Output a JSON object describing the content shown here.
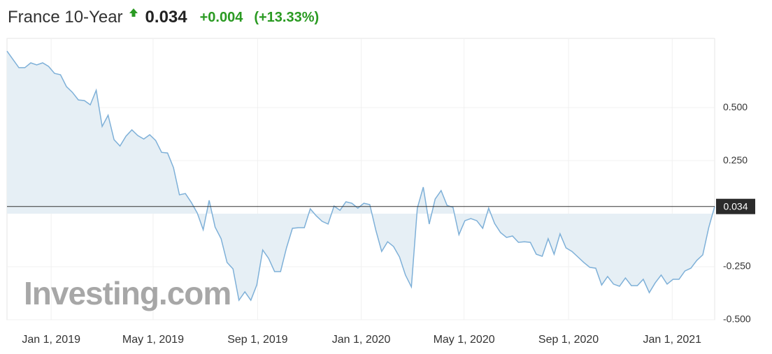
{
  "chart_data": {
    "type": "area",
    "title": "France 10-Year",
    "last_value": {
      "value": 0.034,
      "label": "0.034"
    },
    "change": "+0.004",
    "change_percent": "(+13.33%)",
    "watermark": "Investing.com",
    "color": "#7eb0d8",
    "fill_color": "#e6eff5",
    "x": [
      "2018-11-10",
      "2018-11-17",
      "2018-11-24",
      "2018-12-01",
      "2018-12-08",
      "2018-12-15",
      "2018-12-22",
      "2018-12-29",
      "2019-01-05",
      "2019-01-12",
      "2019-01-19",
      "2019-01-26",
      "2019-02-02",
      "2019-02-09",
      "2019-02-16",
      "2019-02-23",
      "2019-03-02",
      "2019-03-09",
      "2019-03-16",
      "2019-03-23",
      "2019-03-30",
      "2019-04-06",
      "2019-04-13",
      "2019-04-20",
      "2019-04-27",
      "2019-05-04",
      "2019-05-11",
      "2019-05-18",
      "2019-05-25",
      "2019-06-01",
      "2019-06-08",
      "2019-06-15",
      "2019-06-22",
      "2019-06-29",
      "2019-07-06",
      "2019-07-13",
      "2019-07-20",
      "2019-07-27",
      "2019-08-03",
      "2019-08-10",
      "2019-08-17",
      "2019-08-24",
      "2019-08-31",
      "2019-09-07",
      "2019-09-14",
      "2019-09-21",
      "2019-09-28",
      "2019-10-05",
      "2019-10-12",
      "2019-10-19",
      "2019-10-26",
      "2019-11-02",
      "2019-11-09",
      "2019-11-16",
      "2019-11-23",
      "2019-11-30",
      "2019-12-07",
      "2019-12-14",
      "2019-12-21",
      "2019-12-28",
      "2020-01-04",
      "2020-01-11",
      "2020-01-18",
      "2020-01-25",
      "2020-02-01",
      "2020-02-08",
      "2020-02-15",
      "2020-02-22",
      "2020-02-29",
      "2020-03-07",
      "2020-03-14",
      "2020-03-21",
      "2020-03-28",
      "2020-04-04",
      "2020-04-11",
      "2020-04-18",
      "2020-04-25",
      "2020-05-02",
      "2020-05-09",
      "2020-05-16",
      "2020-05-23",
      "2020-05-30",
      "2020-06-06",
      "2020-06-13",
      "2020-06-20",
      "2020-06-27",
      "2020-07-04",
      "2020-07-11",
      "2020-07-18",
      "2020-07-25",
      "2020-08-01",
      "2020-08-08",
      "2020-08-15",
      "2020-08-22",
      "2020-08-29",
      "2020-09-05",
      "2020-09-12",
      "2020-09-19",
      "2020-09-26",
      "2020-10-03",
      "2020-10-10",
      "2020-10-17",
      "2020-10-24",
      "2020-10-31",
      "2020-11-07",
      "2020-11-14",
      "2020-11-21",
      "2020-11-28",
      "2020-12-05",
      "2020-12-12",
      "2020-12-19",
      "2020-12-26",
      "2021-01-02",
      "2021-01-09",
      "2021-01-16",
      "2021-01-23",
      "2021-01-30",
      "2021-02-06",
      "2021-02-13",
      "2021-02-20"
    ],
    "values": [
      0.766,
      0.727,
      0.688,
      0.688,
      0.711,
      0.701,
      0.711,
      0.694,
      0.661,
      0.655,
      0.599,
      0.572,
      0.536,
      0.533,
      0.513,
      0.582,
      0.411,
      0.464,
      0.349,
      0.319,
      0.365,
      0.395,
      0.368,
      0.352,
      0.372,
      0.345,
      0.289,
      0.286,
      0.217,
      0.089,
      0.095,
      0.053,
      0.003,
      -0.076,
      0.063,
      -0.063,
      -0.118,
      -0.23,
      -0.26,
      -0.408,
      -0.368,
      -0.408,
      -0.336,
      -0.171,
      -0.211,
      -0.273,
      -0.273,
      -0.161,
      -0.069,
      -0.066,
      -0.066,
      0.023,
      -0.01,
      -0.036,
      -0.049,
      0.036,
      0.016,
      0.056,
      0.049,
      0.026,
      0.049,
      0.043,
      -0.076,
      -0.178,
      -0.132,
      -0.155,
      -0.204,
      -0.289,
      -0.345,
      0.026,
      0.125,
      -0.049,
      0.069,
      0.109,
      0.039,
      0.03,
      -0.099,
      -0.033,
      -0.023,
      -0.033,
      -0.069,
      0.026,
      -0.046,
      -0.089,
      -0.112,
      -0.105,
      -0.135,
      -0.132,
      -0.135,
      -0.191,
      -0.201,
      -0.118,
      -0.191,
      -0.095,
      -0.161,
      -0.178,
      -0.204,
      -0.23,
      -0.253,
      -0.257,
      -0.336,
      -0.296,
      -0.332,
      -0.342,
      -0.303,
      -0.339,
      -0.339,
      -0.309,
      -0.372,
      -0.326,
      -0.289,
      -0.332,
      -0.309,
      -0.309,
      -0.27,
      -0.257,
      -0.22,
      -0.194,
      -0.066,
      0.034
    ],
    "xlim": [
      "2018-11-10",
      "2021-02-20"
    ],
    "xticks": [
      {
        "value": "2019-01-01",
        "label": "Jan 1, 2019"
      },
      {
        "value": "2019-05-01",
        "label": "May 1, 2019"
      },
      {
        "value": "2019-09-01",
        "label": "Sep 1, 2019"
      },
      {
        "value": "2020-01-01",
        "label": "Jan 1, 2020"
      },
      {
        "value": "2020-05-01",
        "label": "May 1, 2020"
      },
      {
        "value": "2020-09-01",
        "label": "Sep 1, 2020"
      },
      {
        "value": "2021-01-01",
        "label": "Jan 1, 2021"
      }
    ],
    "ylim": [
      -0.5,
      0.826
    ],
    "yticks": [
      {
        "value": 0.5,
        "label": "0.500"
      },
      {
        "value": 0.25,
        "label": "0.250"
      },
      {
        "value": -0.25,
        "label": "-0.250"
      },
      {
        "value": -0.5,
        "label": "-0.500"
      }
    ],
    "grid": true
  }
}
